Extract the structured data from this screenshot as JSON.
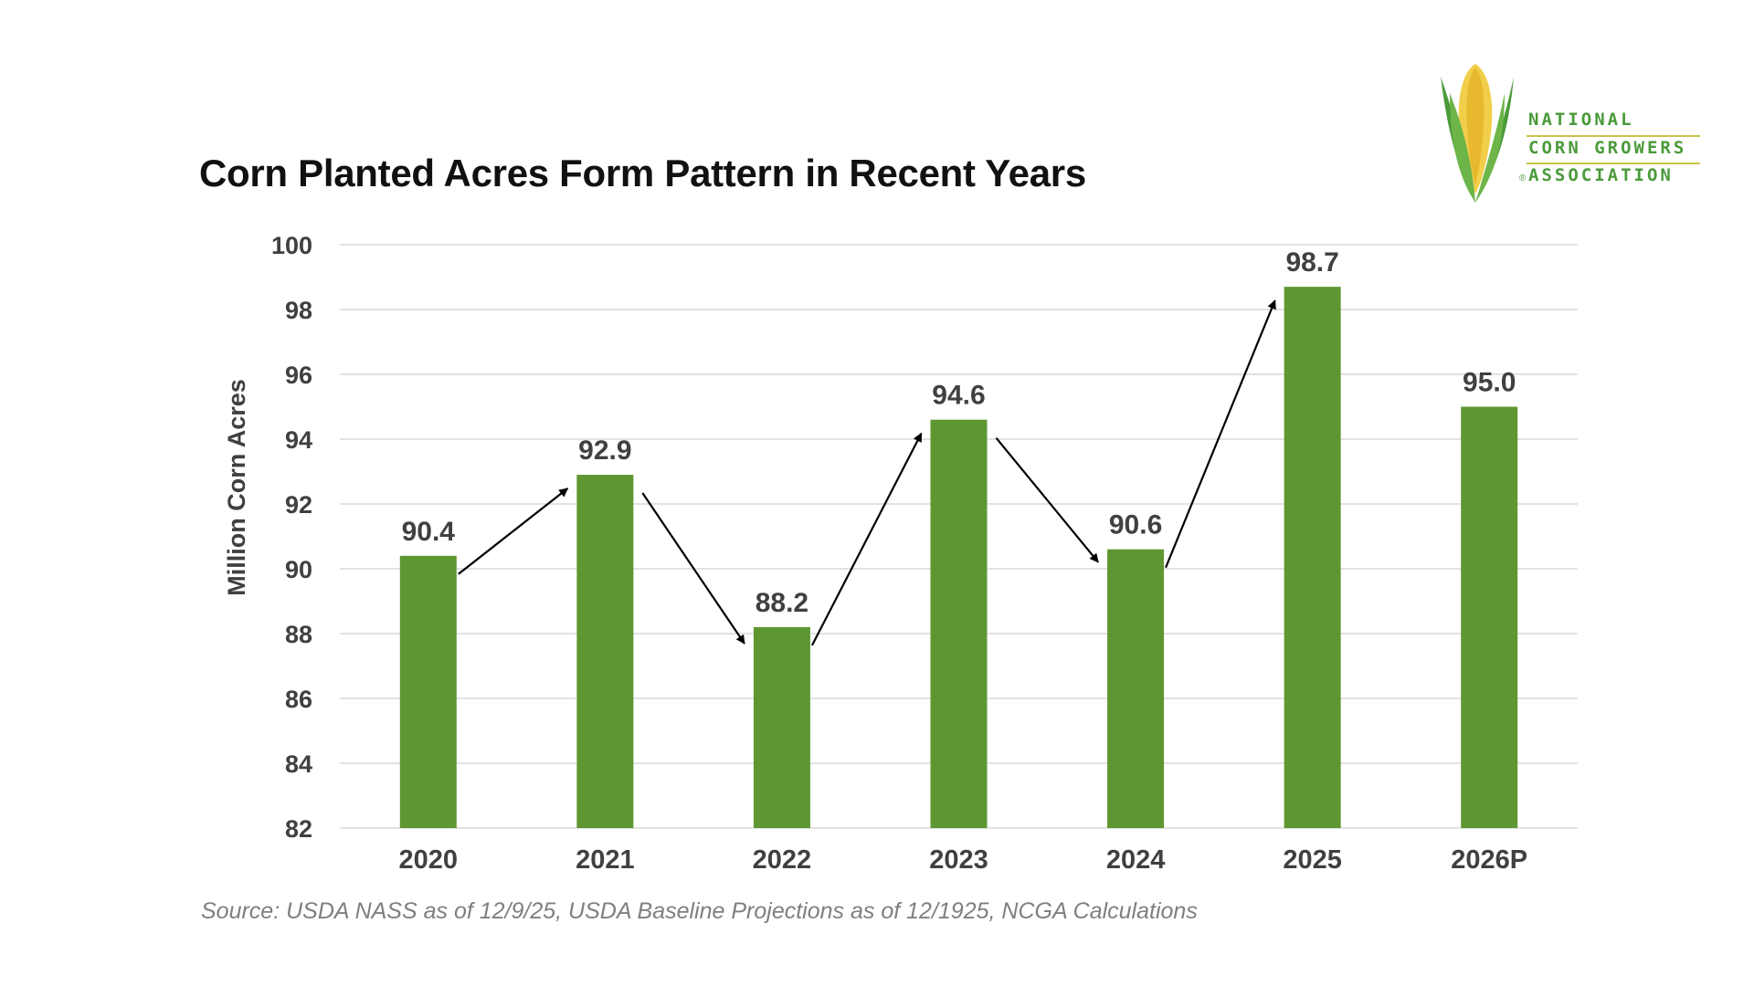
{
  "chart_data": {
    "type": "bar",
    "title": "Corn Planted Acres Form Pattern in Recent Years",
    "xlabel": "",
    "ylabel": "Million Corn Acres",
    "categories": [
      "2020",
      "2021",
      "2022",
      "2023",
      "2024",
      "2025",
      "2026P"
    ],
    "values": [
      90.4,
      92.9,
      88.2,
      94.6,
      90.6,
      98.7,
      95.0
    ],
    "data_labels": [
      "90.4",
      "92.9",
      "88.2",
      "94.6",
      "90.6",
      "98.7",
      "95.0"
    ],
    "ylim": [
      82,
      100
    ],
    "yticks": [
      82,
      84,
      86,
      88,
      90,
      92,
      94,
      96,
      98,
      100
    ],
    "grid": true,
    "bar_color": "#5e9732",
    "annotations": "arrows connecting consecutive bars from 2020 to 2025"
  },
  "source": "Source: USDA NASS as of 12/9/25, USDA Baseline Projections as of 12/1925, NCGA Calculations",
  "logo": {
    "lines": [
      "NATIONAL",
      "CORN GROWERS",
      "ASSOCIATION"
    ],
    "registered_mark": "®"
  },
  "colors": {
    "grid": "#d9d9d9",
    "text": "#404040",
    "logo_green": "#4b9a3a",
    "logo_gold": "#c8c24a"
  }
}
